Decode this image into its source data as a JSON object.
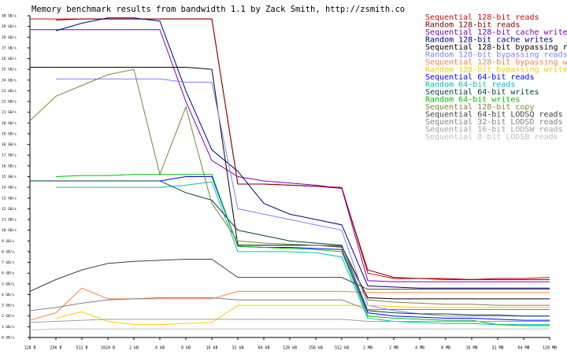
{
  "chart_data": {
    "type": "line",
    "title": "Memory benchmark results from bandwidth 1.1 by Zack Smith, http://zsmith.co",
    "categories": [
      "128 B",
      "256 B",
      "512 B",
      "1024 B",
      "2 kB",
      "4 kB",
      "8 kB",
      "16 kB",
      "32 kB",
      "64 kB",
      "128 kB",
      "256 kB",
      "512 kB",
      "1 MB",
      "2 MB",
      "4 MB",
      "8 MB",
      "16 MB",
      "32 MB",
      "64 MB",
      "128 MB"
    ],
    "ylim": [
      0,
      30
    ],
    "yticks": [
      {
        "value": 0,
        "label": "0 GB/s"
      },
      {
        "value": 1,
        "label": "1 GB/s"
      },
      {
        "value": 2,
        "label": "2 GB/s"
      },
      {
        "value": 3,
        "label": "3 GB/s"
      },
      {
        "value": 4,
        "label": "4 GB/s"
      },
      {
        "value": 5,
        "label": "5 GB/s"
      },
      {
        "value": 6,
        "label": "6 GB/s"
      },
      {
        "value": 7,
        "label": "7 GB/s"
      },
      {
        "value": 8,
        "label": "8 GB/s"
      },
      {
        "value": 9,
        "label": "9 GB/s"
      },
      {
        "value": 10,
        "label": "10 GB/s"
      },
      {
        "value": 11,
        "label": "11 GB/s"
      },
      {
        "value": 12,
        "label": "12 GB/s"
      },
      {
        "value": 13,
        "label": "13 GB/s"
      },
      {
        "value": 14,
        "label": "14 GB/s"
      },
      {
        "value": 15,
        "label": "15 GB/s"
      },
      {
        "value": 16,
        "label": "16 GB/s"
      },
      {
        "value": 17,
        "label": "17 GB/s"
      },
      {
        "value": 18,
        "label": "18 GB/s"
      },
      {
        "value": 19,
        "label": "19 GB/s"
      },
      {
        "value": 20,
        "label": "20 GB/s"
      },
      {
        "value": 21,
        "label": "21 GB/s"
      },
      {
        "value": 22,
        "label": "22 GB/s"
      },
      {
        "value": 23,
        "label": "23 GB/s"
      },
      {
        "value": 24,
        "label": "24 GB/s"
      },
      {
        "value": 25,
        "label": "25 GB/s"
      },
      {
        "value": 26,
        "label": "26 GB/s"
      },
      {
        "value": 27,
        "label": "27 GB/s"
      },
      {
        "value": 28,
        "label": "28 GB/s"
      },
      {
        "value": 29,
        "label": "29 GB/s"
      },
      {
        "value": 30,
        "label": "30 GB/s"
      }
    ],
    "series": [
      {
        "name": "Sequential 128-bit reads",
        "color": "#e00000",
        "values": [
          29.7,
          29.7,
          29.7,
          29.7,
          29.7,
          29.7,
          29.7,
          29.7,
          14.3,
          14.3,
          14.2,
          14.1,
          14.0,
          6.0,
          5.5,
          5.5,
          5.5,
          5.4,
          5.5,
          5.5,
          5.6
        ]
      },
      {
        "name": "Random 128-bit reads",
        "color": "#800000",
        "values": [
          null,
          29.6,
          29.7,
          29.7,
          29.7,
          29.7,
          29.7,
          29.7,
          14.3,
          14.3,
          14.2,
          14.1,
          13.9,
          6.3,
          5.6,
          5.5,
          5.4,
          5.4,
          5.4,
          5.4,
          5.4
        ]
      },
      {
        "name": "Sequential 128-bit cache writes",
        "color": "#8000c0",
        "values": [
          28.7,
          28.7,
          28.7,
          28.7,
          28.7,
          28.7,
          22.0,
          16.5,
          15.0,
          14.6,
          14.4,
          14.2,
          13.9,
          5.3,
          5.2,
          5.2,
          5.2,
          5.2,
          5.2,
          5.2,
          5.2
        ]
      },
      {
        "name": "Random 128-bit cache writes",
        "color": "#000080",
        "values": [
          null,
          28.6,
          29.3,
          29.8,
          29.8,
          29.5,
          23.0,
          17.5,
          15.5,
          12.5,
          11.5,
          11.0,
          10.5,
          4.8,
          4.7,
          4.6,
          4.6,
          4.6,
          4.6,
          4.6,
          4.6
        ]
      },
      {
        "name": "Sequential 128-bit bypassing reads",
        "color": "#000000",
        "values": [
          25.2,
          25.2,
          25.2,
          25.2,
          25.2,
          25.2,
          25.2,
          25.0,
          8.6,
          8.6,
          8.6,
          8.6,
          8.5,
          3.7,
          3.6,
          3.6,
          3.6,
          3.6,
          3.6,
          3.6,
          3.6
        ]
      },
      {
        "name": "Random 128-bit bypassing reads",
        "color": "#8080ff",
        "values": [
          null,
          24.1,
          24.1,
          24.1,
          24.1,
          24.1,
          23.8,
          23.8,
          12.0,
          11.5,
          11.0,
          10.5,
          10.0,
          3.0,
          2.5,
          2.2,
          2.0,
          2.0,
          2.0,
          2.0,
          2.0
        ]
      },
      {
        "name": "Sequential 128-bit bypassing writes",
        "color": "#ff8040",
        "values": [
          1.6,
          2.3,
          4.6,
          3.6,
          3.6,
          3.6,
          3.6,
          3.6,
          4.3,
          4.3,
          4.3,
          4.3,
          4.3,
          4.2,
          4.2,
          4.2,
          4.2,
          4.2,
          4.2,
          4.2,
          4.2
        ]
      },
      {
        "name": "Random 128-bit bypassing writes",
        "color": "#ffcc00",
        "values": [
          null,
          1.8,
          2.4,
          1.5,
          1.2,
          1.2,
          1.3,
          1.4,
          3.0,
          3.0,
          3.0,
          3.0,
          3.0,
          3.0,
          2.9,
          2.8,
          2.8,
          2.8,
          2.8,
          2.8,
          2.8
        ]
      },
      {
        "name": "Sequential 64-bit reads",
        "color": "#0000ff",
        "values": [
          14.6,
          14.6,
          14.6,
          14.6,
          14.6,
          14.6,
          15.0,
          15.0,
          8.5,
          8.4,
          8.4,
          8.3,
          8.2,
          2.3,
          2.0,
          1.9,
          1.8,
          1.8,
          1.7,
          1.6,
          1.6
        ]
      },
      {
        "name": "Random 64-bit reads",
        "color": "#00c0c0",
        "values": [
          null,
          14.0,
          14.0,
          14.0,
          14.0,
          14.0,
          14.2,
          14.5,
          8.0,
          8.0,
          8.0,
          7.9,
          7.5,
          1.8,
          1.5,
          1.4,
          1.3,
          1.3,
          1.2,
          1.2,
          1.2
        ]
      },
      {
        "name": "Sequential 64-bit writes",
        "color": "#004040",
        "values": [
          14.6,
          14.6,
          14.6,
          14.6,
          14.6,
          14.6,
          13.5,
          12.8,
          10.0,
          9.5,
          9.0,
          8.8,
          8.6,
          2.5,
          2.3,
          2.2,
          2.2,
          2.1,
          2.1,
          2.0,
          2.0
        ]
      },
      {
        "name": "Random 64-bit writes",
        "color": "#00c000",
        "values": [
          null,
          15.0,
          15.1,
          15.1,
          15.2,
          15.2,
          15.2,
          15.2,
          8.5,
          8.4,
          8.3,
          8.2,
          8.0,
          2.0,
          1.8,
          1.7,
          1.6,
          1.6,
          1.2,
          1.1,
          1.1
        ]
      },
      {
        "name": "Sequential 128-bit copy",
        "color": "#808040",
        "values": [
          20.2,
          22.5,
          23.5,
          24.5,
          25.0,
          15.2,
          21.5,
          12.5,
          9.0,
          8.8,
          8.7,
          8.6,
          8.4,
          3.5,
          3.3,
          3.2,
          3.1,
          3.1,
          3.0,
          3.0,
          3.0
        ]
      },
      {
        "name": "Sequential 64-bit LODSQ reads",
        "color": "#404040",
        "values": [
          4.3,
          5.4,
          6.3,
          6.9,
          7.1,
          7.2,
          7.3,
          7.3,
          5.6,
          5.6,
          5.6,
          5.6,
          5.6,
          4.5,
          4.5,
          4.5,
          4.5,
          4.5,
          4.5,
          4.5,
          4.5
        ]
      },
      {
        "name": "Sequential 32-bit LODSD reads",
        "color": "#808080",
        "values": [
          2.5,
          2.8,
          3.2,
          3.5,
          3.6,
          3.7,
          3.7,
          3.7,
          3.5,
          3.5,
          3.5,
          3.5,
          3.5,
          2.6,
          2.6,
          2.6,
          2.6,
          2.6,
          2.6,
          2.6,
          2.6
        ]
      },
      {
        "name": "Sequential 16-bit LODSW reads",
        "color": "#a0a0a0",
        "values": [
          1.4,
          1.5,
          1.6,
          1.7,
          1.7,
          1.7,
          1.7,
          1.7,
          1.7,
          1.7,
          1.7,
          1.7,
          1.7,
          1.5,
          1.5,
          1.5,
          1.5,
          1.5,
          1.5,
          1.5,
          1.5
        ]
      },
      {
        "name": "Sequential 8-bit LODSB reads",
        "color": "#c0c0c0",
        "values": [
          0.7,
          0.8,
          0.8,
          0.8,
          0.8,
          0.8,
          0.8,
          0.8,
          0.8,
          0.8,
          0.8,
          0.8,
          0.8,
          0.8,
          0.8,
          0.8,
          0.8,
          0.8,
          0.8,
          0.8,
          0.8
        ]
      }
    ]
  }
}
